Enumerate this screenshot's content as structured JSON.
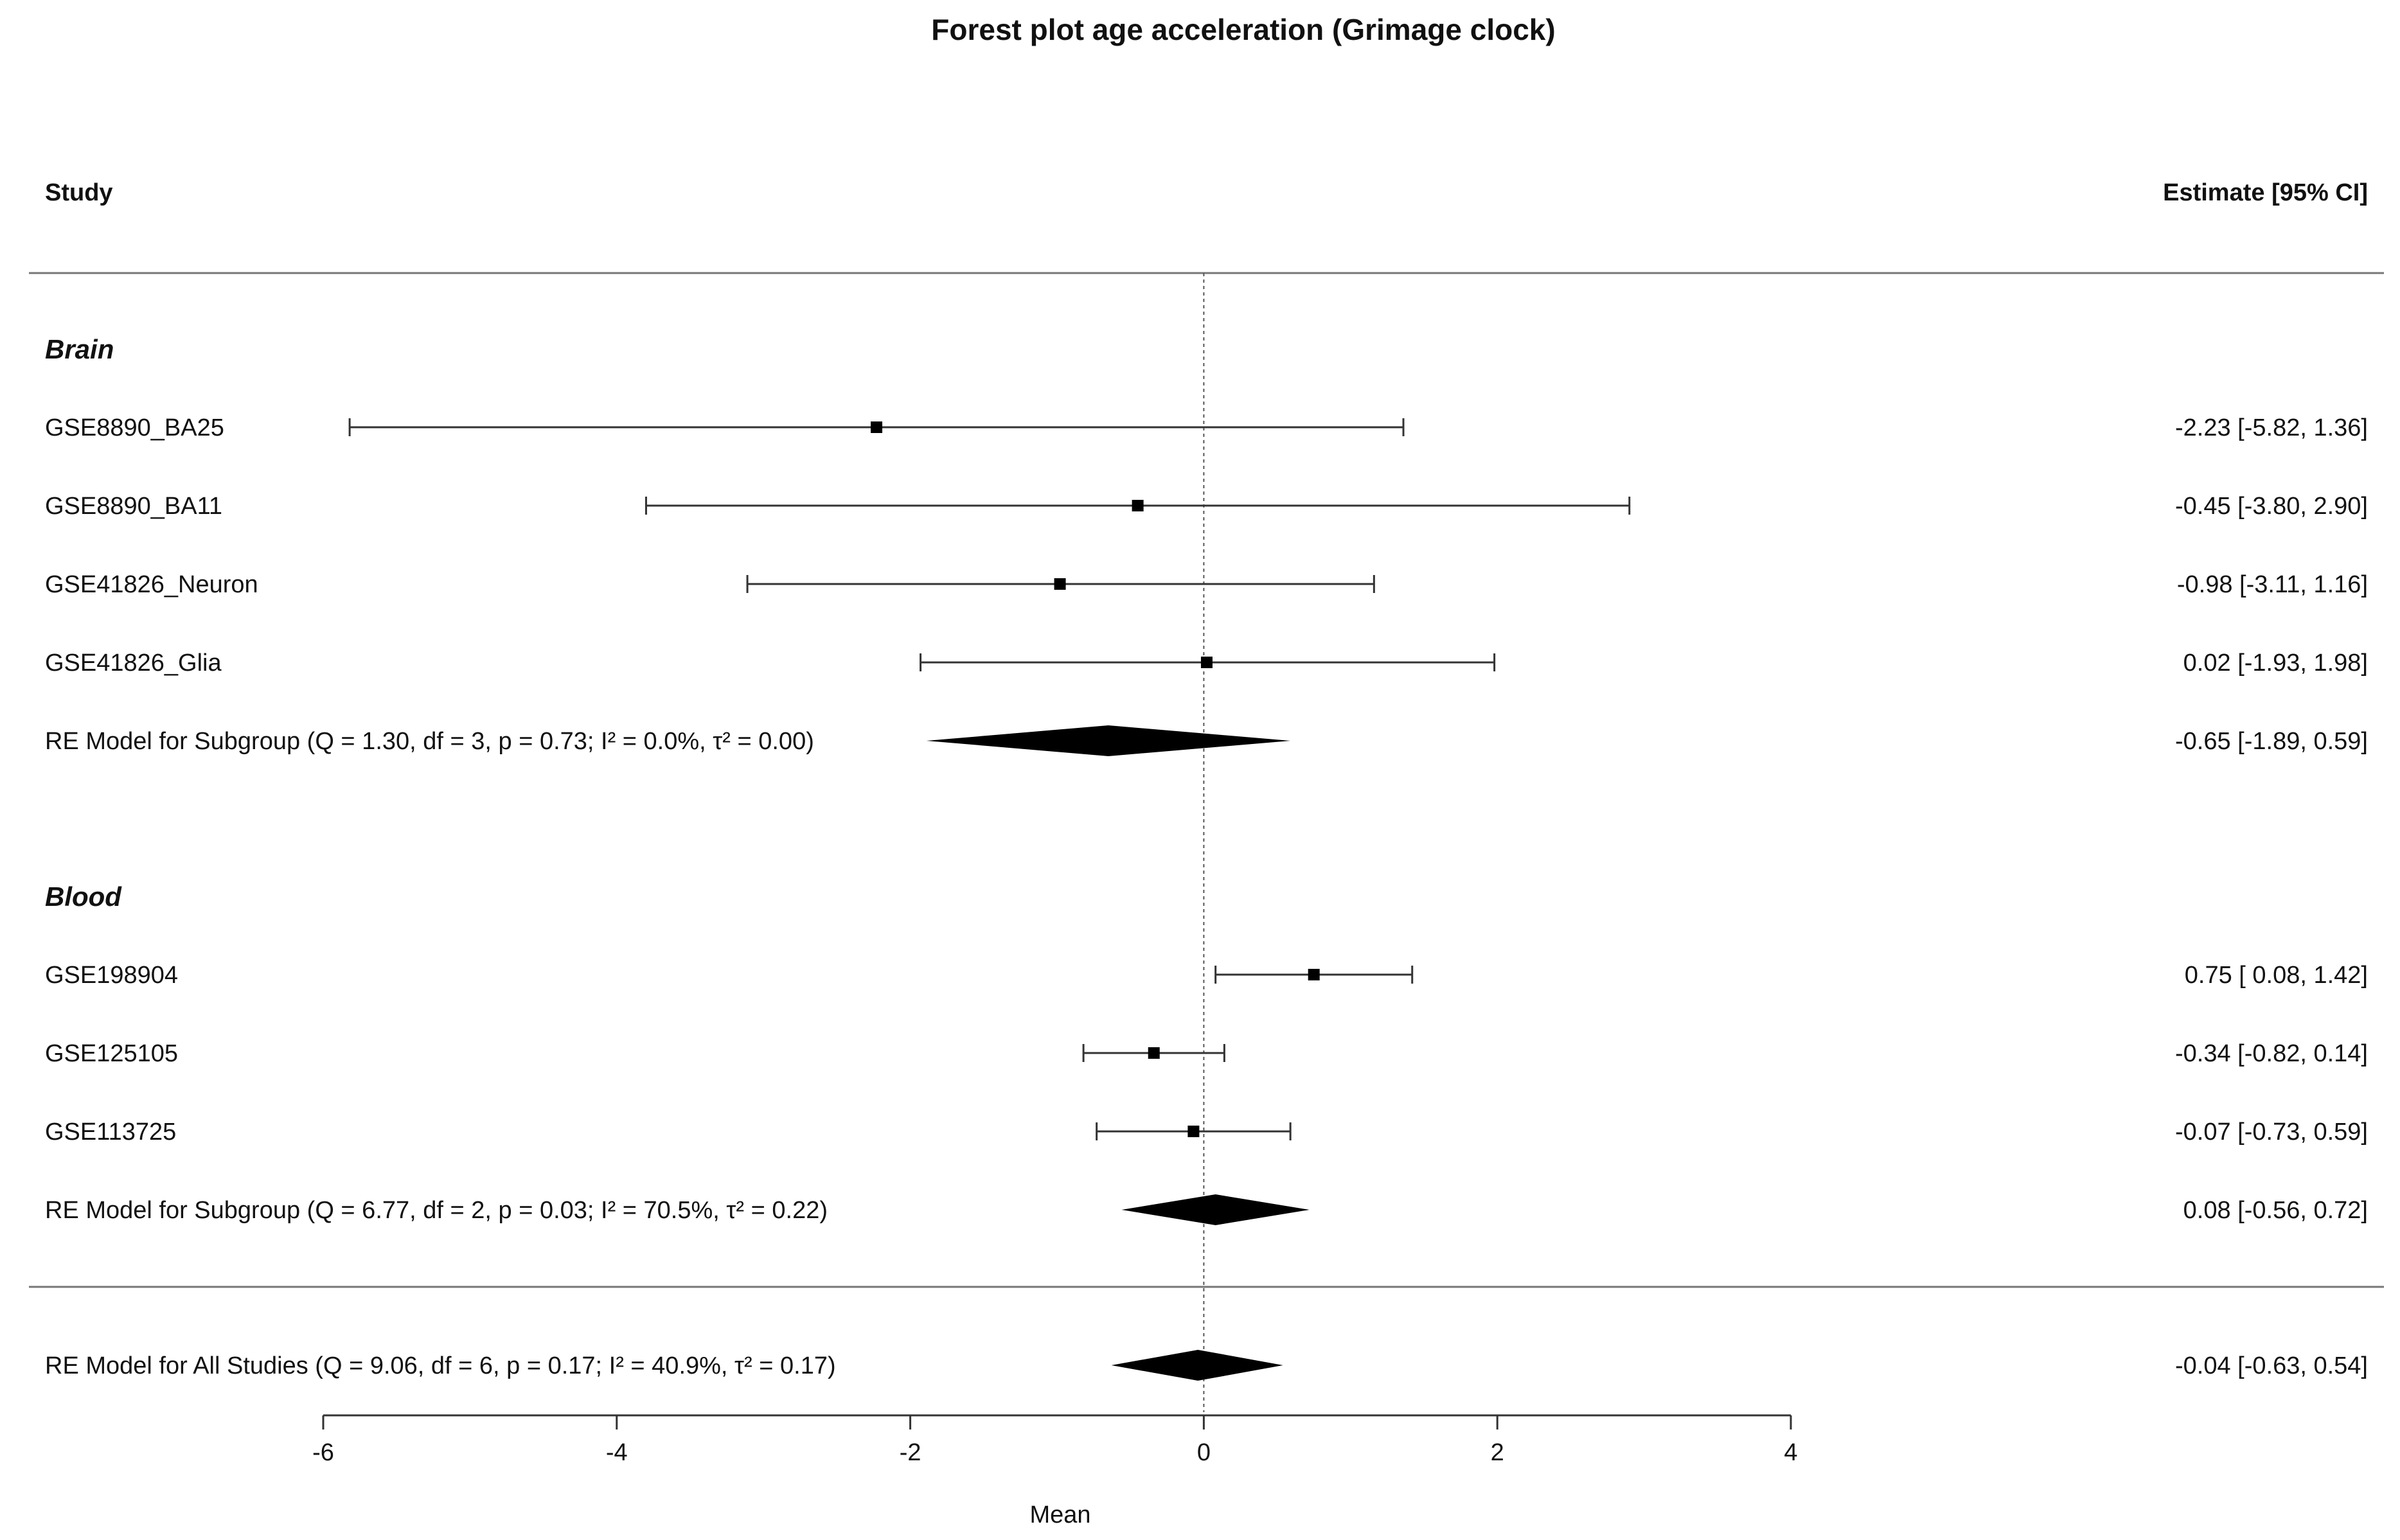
{
  "chart_data": {
    "type": "forest",
    "title": "Forest plot age acceleration (Grimage clock)",
    "header_left": "Study",
    "header_right": "Estimate [95% CI]",
    "xlabel": "Mean",
    "xlim": [
      -6,
      4
    ],
    "xticks": [
      "-6",
      "-4",
      "-2",
      "0",
      "2",
      "4"
    ],
    "groups": [
      {
        "name": "Brain",
        "studies": [
          {
            "label": "GSE8890_BA25",
            "est": -2.23,
            "lo": -5.82,
            "hi": 1.36,
            "text": "-2.23 [-5.82, 1.36]"
          },
          {
            "label": "GSE8890_BA11",
            "est": -0.45,
            "lo": -3.8,
            "hi": 2.9,
            "text": "-0.45 [-3.80, 2.90]"
          },
          {
            "label": "GSE41826_Neuron",
            "est": -0.98,
            "lo": -3.11,
            "hi": 1.16,
            "text": "-0.98 [-3.11, 1.16]"
          },
          {
            "label": "GSE41826_Glia",
            "est": 0.02,
            "lo": -1.93,
            "hi": 1.98,
            "text": "0.02 [-1.93, 1.98]"
          }
        ],
        "summary": {
          "label": "RE Model for Subgroup (Q = 1.30, df = 3, p = 0.73; I² = 0.0%, τ² = 0.00)",
          "est": -0.65,
          "lo": -1.89,
          "hi": 0.59,
          "text": "-0.65 [-1.89, 0.59]"
        }
      },
      {
        "name": "Blood",
        "studies": [
          {
            "label": "GSE198904",
            "est": 0.75,
            "lo": 0.08,
            "hi": 1.42,
            "text": "0.75 [ 0.08, 1.42]"
          },
          {
            "label": "GSE125105",
            "est": -0.34,
            "lo": -0.82,
            "hi": 0.14,
            "text": "-0.34 [-0.82, 0.14]"
          },
          {
            "label": "GSE113725",
            "est": -0.07,
            "lo": -0.73,
            "hi": 0.59,
            "text": "-0.07 [-0.73, 0.59]"
          }
        ],
        "summary": {
          "label": "RE Model for Subgroup (Q = 6.77, df = 2, p = 0.03; I² = 70.5%, τ² = 0.22)",
          "est": 0.08,
          "lo": -0.56,
          "hi": 0.72,
          "text": "0.08 [-0.56, 0.72]"
        }
      }
    ],
    "overall": {
      "label": "RE Model for All Studies (Q = 9.06, df = 6, p = 0.17; I² = 40.9%, τ² = 0.17)",
      "est": -0.04,
      "lo": -0.63,
      "hi": 0.54,
      "text": "-0.04 [-0.63, 0.54]"
    }
  }
}
